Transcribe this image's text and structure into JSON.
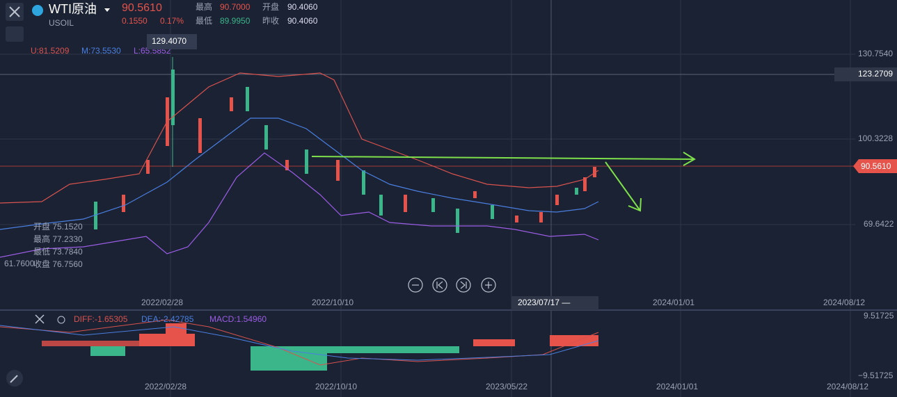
{
  "header": {
    "symbol": "WTI原油",
    "price": "90.5610",
    "code": "USOIL",
    "change": "0.1550",
    "change_pct": "0.17%",
    "stats": [
      {
        "label": "最高",
        "value": "90.7000"
      },
      {
        "label": "开盘",
        "value": "90.4060"
      },
      {
        "label": "最低",
        "value": "89.9950"
      },
      {
        "label": "昨收",
        "value": "90.4060"
      }
    ]
  },
  "main_chart": {
    "indicators": [
      "U:81.5209",
      "M:73.5530",
      "L:65.5852"
    ],
    "high_marker": "129.4070",
    "price_labels": [
      "130.7540",
      "123.2709",
      "100.3228",
      "69.6422"
    ],
    "current_price": "90.5610",
    "ohlc_tooltip": [
      "开盘 75.1520",
      "最高 77.2330",
      "最低 73.7840",
      "收盘 76.7560"
    ],
    "low_marker": "61.7600",
    "x_labels": [
      "2022/02/28",
      "2022/10/10",
      "2024/01/01",
      "2024/08/12"
    ],
    "crosshair_date": "2023/07/17 —"
  },
  "macd": {
    "indicators": [
      "DIFF:-1.65305",
      "DEA:-2.42785",
      "MACD:1.54960"
    ],
    "y_labels": [
      "9.51725",
      "−9.51725"
    ],
    "x_labels": [
      "2022/02/28",
      "2022/10/10",
      "2023/05/22",
      "2024/01/01",
      "2024/08/12"
    ]
  }
}
